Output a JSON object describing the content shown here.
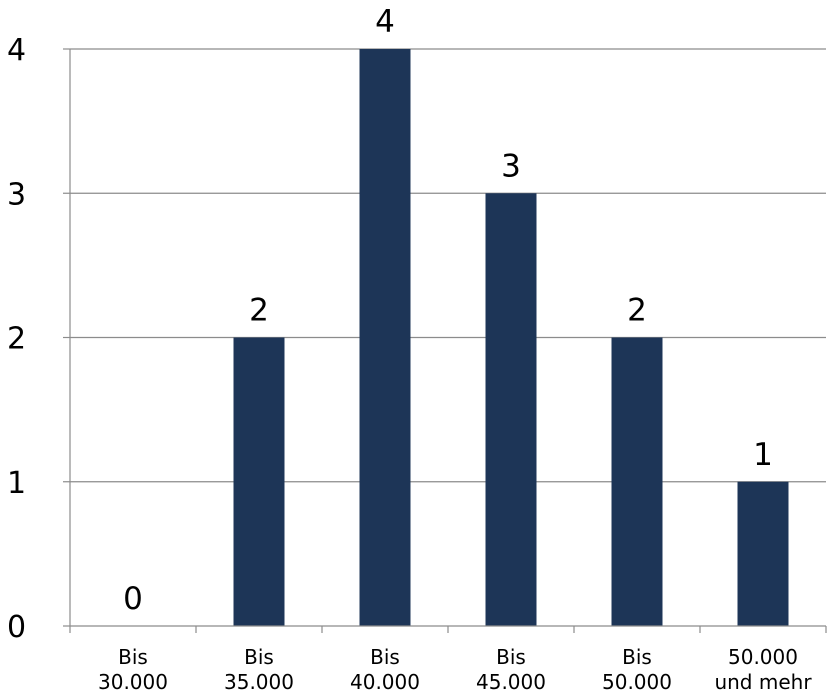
{
  "chart_data": {
    "type": "bar",
    "categories": [
      [
        "Bis",
        "30.000"
      ],
      [
        "Bis",
        "35.000"
      ],
      [
        "Bis",
        "40.000"
      ],
      [
        "Bis",
        "45.000"
      ],
      [
        "Bis",
        "50.000"
      ],
      [
        "50.000",
        "und mehr"
      ]
    ],
    "values": [
      0,
      2,
      4,
      3,
      2,
      1
    ],
    "data_labels": [
      "0",
      "2",
      "4",
      "3",
      "2",
      "1"
    ],
    "y_ticks": [
      "0",
      "1",
      "2",
      "3",
      "4"
    ],
    "ylim": [
      0,
      4
    ],
    "grid": true,
    "legend": "none",
    "bar_color": "#1d3557"
  }
}
